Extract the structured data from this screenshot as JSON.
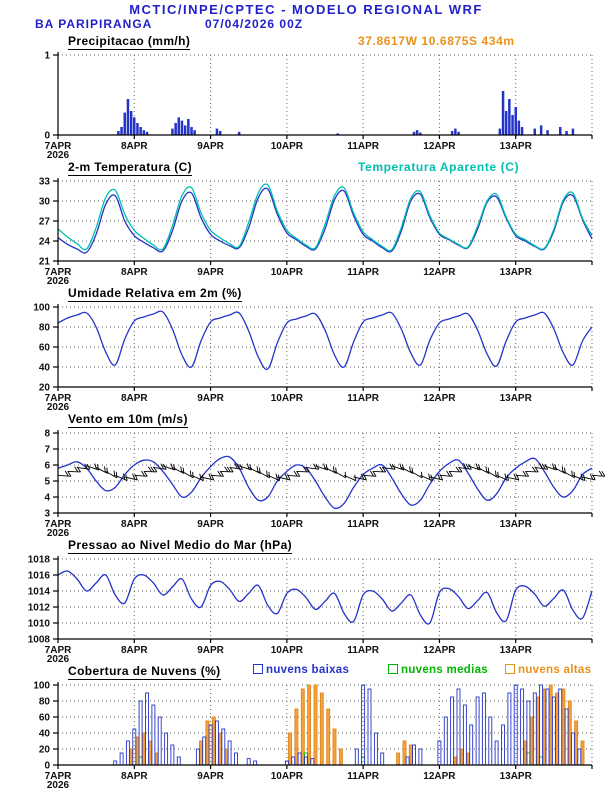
{
  "header": {
    "title": "MCTIC/INPE/CPTEC - MODELO REGIONAL WRF",
    "station": "BA PARIPIRANGA",
    "run": "07/04/2026 00Z",
    "location": "37.8617W 10.6875S 434m"
  },
  "x_axis": {
    "min": 0,
    "max": 168,
    "ticks": [
      {
        "h": 0,
        "label": "7APR",
        "sub": "2026"
      },
      {
        "h": 24,
        "label": "8APR"
      },
      {
        "h": 48,
        "label": "9APR"
      },
      {
        "h": 72,
        "label": "10APR"
      },
      {
        "h": 96,
        "label": "11APR"
      },
      {
        "h": 120,
        "label": "12APR"
      },
      {
        "h": 144,
        "label": "13APR"
      },
      {
        "h": 168,
        "label": ""
      }
    ]
  },
  "chart_data": [
    {
      "type": "bar",
      "title": "Precipitacao (mm/h)",
      "ylabel": "mm/h",
      "ylim": [
        0,
        1
      ],
      "yticks": [
        0,
        1
      ],
      "series": [
        {
          "name": "precipitacao",
          "plot": "bars",
          "width": 2.5,
          "fill": "#2433c8",
          "stroke": "none",
          "data": [
            [
              19,
              0.05
            ],
            [
              20,
              0.1
            ],
            [
              21,
              0.28
            ],
            [
              22,
              0.45
            ],
            [
              23,
              0.3
            ],
            [
              24,
              0.22
            ],
            [
              25,
              0.15
            ],
            [
              26,
              0.1
            ],
            [
              27,
              0.06
            ],
            [
              28,
              0.04
            ],
            [
              36,
              0.08
            ],
            [
              37,
              0.15
            ],
            [
              38,
              0.22
            ],
            [
              39,
              0.18
            ],
            [
              40,
              0.12
            ],
            [
              41,
              0.2
            ],
            [
              42,
              0.1
            ],
            [
              43,
              0.06
            ],
            [
              50,
              0.08
            ],
            [
              51,
              0.05
            ],
            [
              57,
              0.04
            ],
            [
              88,
              0.02
            ],
            [
              112,
              0.04
            ],
            [
              113,
              0.06
            ],
            [
              114,
              0.03
            ],
            [
              124,
              0.05
            ],
            [
              125,
              0.08
            ],
            [
              126,
              0.04
            ],
            [
              139,
              0.08
            ],
            [
              140,
              0.55
            ],
            [
              141,
              0.3
            ],
            [
              142,
              0.45
            ],
            [
              143,
              0.25
            ],
            [
              144,
              0.35
            ],
            [
              145,
              0.18
            ],
            [
              146,
              0.1
            ],
            [
              150,
              0.08
            ],
            [
              152,
              0.12
            ],
            [
              154,
              0.06
            ],
            [
              158,
              0.1
            ],
            [
              160,
              0.05
            ],
            [
              162,
              0.08
            ]
          ]
        }
      ]
    },
    {
      "type": "line",
      "title": "2-m Temperatura (C)",
      "legend": [
        {
          "label": "Temperatura Aparente (C)",
          "color": "#00c0ae"
        }
      ],
      "ylim": [
        21,
        33
      ],
      "yticks": [
        21,
        24,
        27,
        30,
        33
      ],
      "step": 3,
      "series": [
        {
          "name": "temperatura",
          "plot": "line",
          "color": "#2433c8",
          "values": [
            24.5,
            23.5,
            22.8,
            22.3,
            25.0,
            29.5,
            30.8,
            27.0,
            24.8,
            23.8,
            23.0,
            22.5,
            25.5,
            30.0,
            31.2,
            27.5,
            25.0,
            24.0,
            23.3,
            23.0,
            26.0,
            30.5,
            31.8,
            28.0,
            25.2,
            24.2,
            23.2,
            22.8,
            25.8,
            30.2,
            31.5,
            27.8,
            25.0,
            24.0,
            23.0,
            22.5,
            25.5,
            30.0,
            31.0,
            27.5,
            25.0,
            24.2,
            23.4,
            23.0,
            25.8,
            29.8,
            30.6,
            27.4,
            24.8,
            24.0,
            23.2,
            22.8,
            25.5,
            29.9,
            30.8,
            27.2,
            24.3
          ]
        },
        {
          "name": "temperatura_aparente",
          "plot": "line",
          "color": "#00c0ae",
          "values": [
            25.8,
            24.6,
            23.6,
            22.8,
            26.0,
            30.5,
            31.6,
            28.0,
            25.6,
            24.4,
            23.4,
            22.8,
            26.3,
            30.8,
            32.0,
            28.2,
            25.6,
            24.5,
            23.6,
            23.2,
            26.8,
            31.2,
            32.4,
            28.5,
            25.6,
            24.4,
            23.4,
            23.0,
            26.5,
            30.8,
            32.0,
            28.2,
            25.4,
            24.2,
            23.2,
            22.7,
            26.0,
            30.4,
            31.4,
            27.8,
            25.2,
            24.3,
            23.5,
            23.1,
            26.2,
            30.0,
            31.0,
            27.6,
            25.0,
            24.2,
            23.3,
            22.9,
            25.8,
            30.2,
            31.2,
            27.4,
            24.8
          ]
        }
      ]
    },
    {
      "type": "line",
      "title": "Umidade Relativa em 2m (%)",
      "ylim": [
        20,
        100
      ],
      "yticks": [
        20,
        40,
        60,
        80,
        100
      ],
      "step": 3,
      "series": [
        {
          "name": "umidade_relativa",
          "plot": "line",
          "color": "#2433c8",
          "values": [
            84,
            89,
            92,
            94,
            80,
            55,
            42,
            68,
            86,
            90,
            93,
            95,
            78,
            52,
            40,
            66,
            85,
            89,
            92,
            94,
            76,
            50,
            38,
            64,
            84,
            88,
            91,
            93,
            77,
            52,
            40,
            65,
            85,
            89,
            92,
            94,
            78,
            54,
            42,
            67,
            84,
            88,
            91,
            93,
            77,
            53,
            41,
            66,
            85,
            89,
            92,
            94,
            78,
            54,
            42,
            66,
            80
          ]
        }
      ]
    },
    {
      "type": "line",
      "title": "Vento em 10m (m/s)",
      "ylim": [
        3,
        8
      ],
      "yticks": [
        3,
        4,
        5,
        6,
        7,
        8
      ],
      "step": 3,
      "barbs": {
        "base": 5.6,
        "amp": 0.35
      },
      "series": [
        {
          "name": "vento_10m",
          "plot": "line",
          "color": "#2433c8",
          "values": [
            5.8,
            6.0,
            6.2,
            5.8,
            5.0,
            4.4,
            4.6,
            5.4,
            6.0,
            6.3,
            6.2,
            5.6,
            4.8,
            4.0,
            4.3,
            5.2,
            5.9,
            6.4,
            6.5,
            5.8,
            4.6,
            3.8,
            4.0,
            5.0,
            5.6,
            6.0,
            5.8,
            5.0,
            4.0,
            3.3,
            3.6,
            4.6,
            5.4,
            5.8,
            6.0,
            5.2,
            4.2,
            3.5,
            3.8,
            4.8,
            5.6,
            6.1,
            6.3,
            5.5,
            4.5,
            3.8,
            4.2,
            5.2,
            5.8,
            6.2,
            6.4,
            5.6,
            4.6,
            4.0,
            4.4,
            5.4,
            5.8
          ]
        }
      ]
    },
    {
      "type": "line",
      "title": "Pressao ao Nivel Medio do Mar (hPa)",
      "ylim": [
        1008,
        1018
      ],
      "yticks": [
        1008,
        1010,
        1012,
        1014,
        1016,
        1018
      ],
      "step": 3,
      "series": [
        {
          "name": "pressao_nivel_mar",
          "plot": "line",
          "color": "#2433c8",
          "values": [
            1016.0,
            1016.5,
            1015.5,
            1014.0,
            1015.0,
            1016.0,
            1013.5,
            1012.5,
            1015.5,
            1016.0,
            1015.0,
            1013.5,
            1014.5,
            1015.5,
            1013.0,
            1012.0,
            1014.7,
            1015.2,
            1014.2,
            1012.7,
            1013.7,
            1014.7,
            1012.2,
            1011.2,
            1013.7,
            1014.2,
            1013.2,
            1011.7,
            1012.7,
            1013.7,
            1011.2,
            1010.2,
            1013.5,
            1014.0,
            1013.0,
            1011.5,
            1012.5,
            1013.5,
            1011.0,
            1010.0,
            1013.8,
            1014.3,
            1013.3,
            1011.8,
            1012.8,
            1013.8,
            1011.3,
            1010.3,
            1014.1,
            1014.6,
            1013.6,
            1012.1,
            1013.1,
            1014.1,
            1011.6,
            1010.6,
            1014.0
          ]
        }
      ]
    },
    {
      "type": "bar",
      "title": "Cobertura de Nuvens (%)",
      "legend": [
        {
          "label": "nuvens baixas",
          "color": "#2433c8"
        },
        {
          "label": "nuvens medias",
          "color": "#00b400"
        },
        {
          "label": "nuvens altas",
          "color": "#e8921a"
        }
      ],
      "ylim": [
        0,
        100
      ],
      "yticks": [
        0,
        20,
        40,
        60,
        80,
        100
      ],
      "series": [
        {
          "name": "nuvens_altas",
          "plot": "bars",
          "width": 3,
          "fill": "#f2a241",
          "stroke": "#e08818",
          "data": [
            [
              23,
              20
            ],
            [
              25,
              35
            ],
            [
              27,
              40
            ],
            [
              29,
              30
            ],
            [
              31,
              15
            ],
            [
              45,
              30
            ],
            [
              47,
              55
            ],
            [
              49,
              60
            ],
            [
              51,
              40
            ],
            [
              53,
              20
            ],
            [
              73,
              40
            ],
            [
              75,
              70
            ],
            [
              77,
              95
            ],
            [
              79,
              100
            ],
            [
              81,
              100
            ],
            [
              83,
              90
            ],
            [
              85,
              70
            ],
            [
              87,
              45
            ],
            [
              89,
              20
            ],
            [
              107,
              15
            ],
            [
              109,
              30
            ],
            [
              111,
              25
            ],
            [
              125,
              10
            ],
            [
              127,
              20
            ],
            [
              129,
              15
            ],
            [
              147,
              30
            ],
            [
              149,
              60
            ],
            [
              151,
              85
            ],
            [
              153,
              95
            ],
            [
              155,
              100
            ],
            [
              157,
              90
            ],
            [
              159,
              95
            ],
            [
              161,
              80
            ],
            [
              163,
              55
            ],
            [
              165,
              30
            ]
          ]
        },
        {
          "name": "nuvens_medias",
          "plot": "bars",
          "width": 3,
          "fill": "none",
          "stroke": "#00b400",
          "data": [
            [
              26,
              10
            ],
            [
              78,
              15
            ],
            [
              96,
              10
            ],
            [
              148,
              15
            ],
            [
              152,
              10
            ]
          ]
        },
        {
          "name": "nuvens_baixas",
          "plot": "bars",
          "width": 3,
          "fill": "none",
          "stroke": "#2433c8",
          "data": [
            [
              18,
              5
            ],
            [
              20,
              15
            ],
            [
              22,
              30
            ],
            [
              24,
              45
            ],
            [
              26,
              80
            ],
            [
              28,
              90
            ],
            [
              30,
              75
            ],
            [
              32,
              60
            ],
            [
              34,
              40
            ],
            [
              36,
              25
            ],
            [
              38,
              10
            ],
            [
              44,
              20
            ],
            [
              46,
              35
            ],
            [
              48,
              50
            ],
            [
              50,
              55
            ],
            [
              52,
              45
            ],
            [
              54,
              30
            ],
            [
              56,
              15
            ],
            [
              60,
              8
            ],
            [
              62,
              5
            ],
            [
              72,
              5
            ],
            [
              74,
              10
            ],
            [
              76,
              15
            ],
            [
              78,
              10
            ],
            [
              80,
              8
            ],
            [
              94,
              20
            ],
            [
              96,
              100
            ],
            [
              98,
              95
            ],
            [
              100,
              40
            ],
            [
              102,
              15
            ],
            [
              110,
              10
            ],
            [
              112,
              25
            ],
            [
              114,
              20
            ],
            [
              120,
              30
            ],
            [
              122,
              60
            ],
            [
              124,
              85
            ],
            [
              126,
              95
            ],
            [
              128,
              75
            ],
            [
              130,
              50
            ],
            [
              132,
              85
            ],
            [
              134,
              90
            ],
            [
              136,
              60
            ],
            [
              138,
              30
            ],
            [
              140,
              50
            ],
            [
              142,
              90
            ],
            [
              144,
              100
            ],
            [
              146,
              95
            ],
            [
              148,
              80
            ],
            [
              150,
              90
            ],
            [
              152,
              100
            ],
            [
              154,
              95
            ],
            [
              156,
              85
            ],
            [
              158,
              95
            ],
            [
              160,
              70
            ],
            [
              162,
              40
            ],
            [
              164,
              20
            ]
          ]
        }
      ]
    }
  ]
}
